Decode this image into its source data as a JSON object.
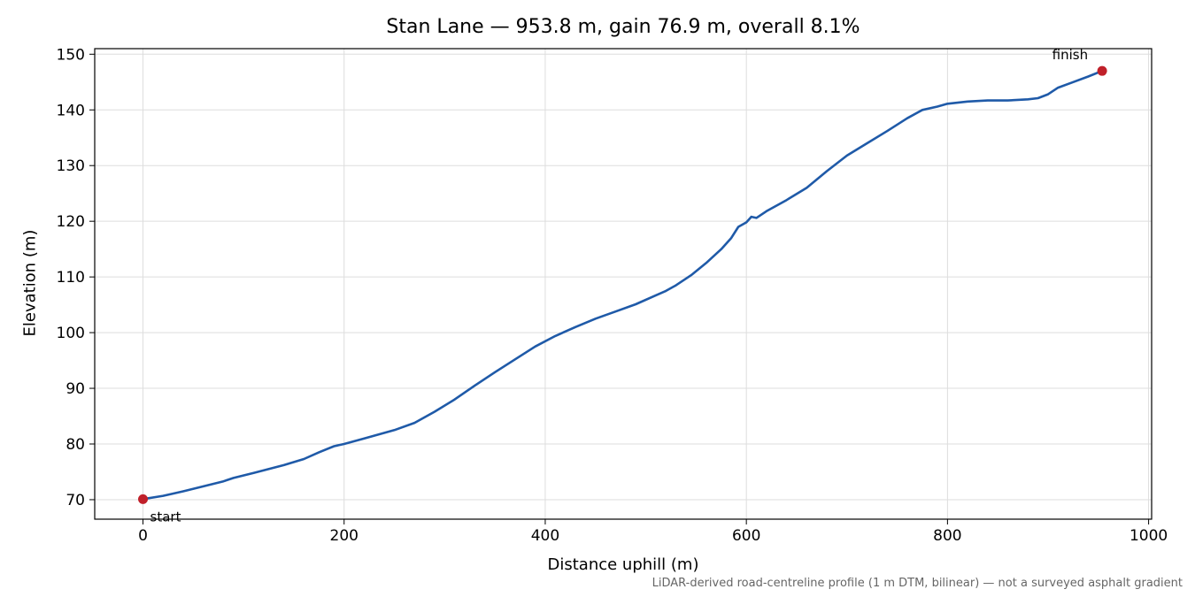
{
  "chart_data": {
    "type": "line",
    "title": "Stan Lane — 953.8 m, gain 76.9 m, overall 8.1%",
    "xlabel": "Distance uphill (m)",
    "ylabel": "Elevation (m)",
    "footnote": "LiDAR-derived road-centreline profile (1 m DTM, bilinear) — not a surveyed asphalt gradient",
    "xlim": [
      -48,
      1003
    ],
    "ylim": [
      66.5,
      151
    ],
    "x_ticks": [
      0,
      200,
      400,
      600,
      800,
      1000
    ],
    "y_ticks": [
      70,
      80,
      90,
      100,
      110,
      120,
      130,
      140,
      150
    ],
    "grid": true,
    "series": [
      {
        "color": "#1f5aa8",
        "points": [
          [
            0,
            70.1
          ],
          [
            20,
            70.7
          ],
          [
            40,
            71.5
          ],
          [
            60,
            72.4
          ],
          [
            80,
            73.3
          ],
          [
            90,
            73.9
          ],
          [
            110,
            74.8
          ],
          [
            140,
            76.2
          ],
          [
            160,
            77.3
          ],
          [
            175,
            78.5
          ],
          [
            190,
            79.6
          ],
          [
            200,
            80.0
          ],
          [
            220,
            81.0
          ],
          [
            250,
            82.5
          ],
          [
            270,
            83.8
          ],
          [
            290,
            85.8
          ],
          [
            310,
            88.0
          ],
          [
            330,
            90.5
          ],
          [
            350,
            92.9
          ],
          [
            370,
            95.2
          ],
          [
            390,
            97.5
          ],
          [
            410,
            99.4
          ],
          [
            430,
            101.0
          ],
          [
            450,
            102.5
          ],
          [
            470,
            103.8
          ],
          [
            490,
            105.1
          ],
          [
            510,
            106.7
          ],
          [
            520,
            107.5
          ],
          [
            530,
            108.5
          ],
          [
            545,
            110.3
          ],
          [
            560,
            112.5
          ],
          [
            575,
            115.0
          ],
          [
            585,
            117.0
          ],
          [
            592,
            119.0
          ],
          [
            600,
            119.8
          ],
          [
            605,
            120.8
          ],
          [
            610,
            120.6
          ],
          [
            620,
            121.8
          ],
          [
            640,
            123.8
          ],
          [
            660,
            126.0
          ],
          [
            680,
            129.0
          ],
          [
            700,
            131.8
          ],
          [
            720,
            134.0
          ],
          [
            740,
            136.2
          ],
          [
            760,
            138.5
          ],
          [
            775,
            140.0
          ],
          [
            790,
            140.6
          ],
          [
            800,
            141.1
          ],
          [
            820,
            141.5
          ],
          [
            840,
            141.7
          ],
          [
            860,
            141.7
          ],
          [
            880,
            141.9
          ],
          [
            890,
            142.1
          ],
          [
            900,
            142.8
          ],
          [
            910,
            144.0
          ],
          [
            925,
            145.0
          ],
          [
            940,
            146.0
          ],
          [
            953.8,
            147.0
          ]
        ]
      }
    ],
    "markers": [
      {
        "x": 0,
        "y": 70.1,
        "label": "start",
        "color": "#c0202a"
      },
      {
        "x": 953.8,
        "y": 147.0,
        "label": "finish",
        "color": "#c0202a"
      }
    ]
  }
}
